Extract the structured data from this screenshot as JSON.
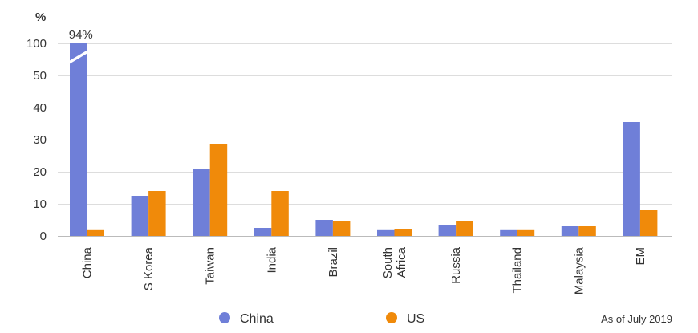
{
  "chart_data": {
    "type": "bar",
    "ylabel": "%",
    "y_ticks": [
      "0",
      "10",
      "20",
      "30",
      "40",
      "50",
      "100"
    ],
    "axis_break": "between 50 and 100",
    "categories": [
      "China",
      "S Korea",
      "Taiwan",
      "India",
      "Brazil",
      "South Africa",
      "Russia",
      "Thailand",
      "Malaysia",
      "EM"
    ],
    "category_label_lines": [
      [
        "China"
      ],
      [
        "S Korea"
      ],
      [
        "Taiwan"
      ],
      [
        "India"
      ],
      [
        "Brazil"
      ],
      [
        "South",
        "Africa"
      ],
      [
        "Russia"
      ],
      [
        "Thailand"
      ],
      [
        "Malaysia"
      ],
      [
        "EM"
      ]
    ],
    "series": [
      {
        "name": "China",
        "color": "#6f7fd8",
        "values": [
          94,
          12.5,
          21,
          2.5,
          5,
          1.8,
          3.5,
          1.8,
          3,
          35.5
        ]
      },
      {
        "name": "US",
        "color": "#f08a0a",
        "values": [
          1.8,
          14,
          28.5,
          14,
          4.5,
          2.2,
          4.5,
          1.8,
          3,
          8
        ]
      }
    ],
    "annotations": [
      {
        "category": "China",
        "series": "China",
        "text": "94%"
      }
    ],
    "legend": "bottom-center",
    "note": "As of July 2019",
    "grid": true
  }
}
